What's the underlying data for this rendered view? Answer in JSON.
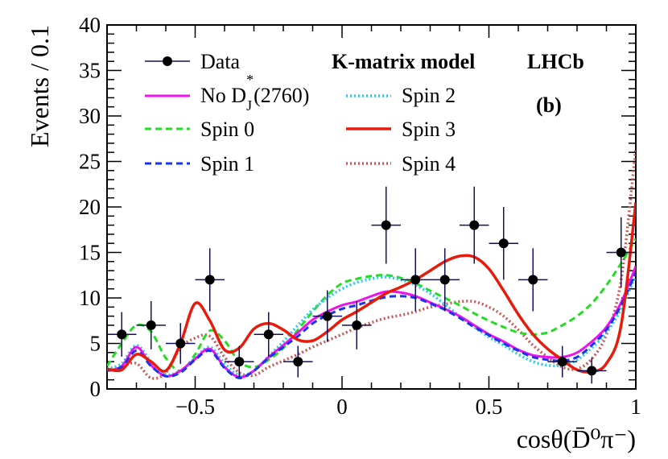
{
  "chart_data": {
    "type": "line",
    "title": "",
    "xlabel": "cosθ(D̄⁰π⁻)",
    "ylabel": "Events / 0.1",
    "xlim": [
      -0.8,
      1.0
    ],
    "ylim": [
      0,
      40
    ],
    "x_ticks": [
      -0.5,
      0,
      0.5,
      1
    ],
    "x_tick_labels": [
      "−0.5",
      "0",
      "0.5",
      "1"
    ],
    "y_ticks": [
      0,
      5,
      10,
      15,
      20,
      25,
      30,
      35,
      40
    ],
    "y_tick_labels": [
      "0",
      "5",
      "10",
      "15",
      "20",
      "25",
      "30",
      "35",
      "40"
    ],
    "grid": false,
    "legend_position": "top-left",
    "annotations": {
      "model": "K-matrix model",
      "experiment": "LHCb",
      "panel": "(b)"
    },
    "data_points": {
      "name": "Data",
      "color": "#101060",
      "x": [
        -0.75,
        -0.65,
        -0.55,
        -0.45,
        -0.35,
        -0.25,
        -0.15,
        -0.05,
        0.05,
        0.15,
        0.25,
        0.35,
        0.45,
        0.55,
        0.65,
        0.75,
        0.85,
        0.95
      ],
      "y": [
        6,
        7,
        5,
        12,
        3,
        6,
        3,
        8,
        7,
        18,
        12,
        12,
        18,
        16,
        12,
        3,
        2,
        15
      ],
      "yerr": [
        2.45,
        2.65,
        2.24,
        3.46,
        1.73,
        2.45,
        1.73,
        2.83,
        2.65,
        4.24,
        3.46,
        3.46,
        4.24,
        4.0,
        3.46,
        1.73,
        1.41,
        3.87
      ],
      "xerr": 0.05
    },
    "series": [
      {
        "name": "No D_J^*(2760)",
        "legend_main": "No D",
        "legend_sub": "J",
        "legend_sup": "*",
        "legend_tail": "(2760)",
        "color": "#ee11ee",
        "dash": "solid",
        "width": 3,
        "x": [
          -0.8,
          -0.75,
          -0.7,
          -0.65,
          -0.6,
          -0.55,
          -0.5,
          -0.45,
          -0.4,
          -0.35,
          -0.3,
          -0.25,
          -0.2,
          -0.15,
          -0.1,
          -0.05,
          0,
          0.05,
          0.1,
          0.15,
          0.2,
          0.25,
          0.3,
          0.35,
          0.4,
          0.45,
          0.5,
          0.55,
          0.6,
          0.65,
          0.7,
          0.75,
          0.8,
          0.85,
          0.9,
          0.95,
          1.0
        ],
        "y": [
          2.0,
          2.5,
          4.6,
          2.6,
          1.4,
          2.0,
          3.3,
          4.4,
          2.4,
          1.3,
          2.0,
          3.5,
          4.8,
          6.2,
          7.6,
          8.5,
          9.2,
          9.6,
          10.2,
          10.7,
          10.6,
          10.2,
          9.5,
          8.8,
          8.0,
          7.0,
          6.0,
          5.2,
          4.3,
          3.7,
          3.5,
          3.5,
          4.0,
          5.2,
          6.8,
          9.5,
          13.5
        ]
      },
      {
        "name": "Spin 0",
        "legend_main": "Spin 0",
        "color": "#22dd22",
        "dash": "8,5",
        "width": 3,
        "x": [
          -0.8,
          -0.75,
          -0.7,
          -0.65,
          -0.6,
          -0.55,
          -0.5,
          -0.45,
          -0.4,
          -0.35,
          -0.3,
          -0.25,
          -0.2,
          -0.15,
          -0.1,
          -0.05,
          0,
          0.05,
          0.1,
          0.15,
          0.2,
          0.25,
          0.3,
          0.35,
          0.4,
          0.45,
          0.5,
          0.55,
          0.6,
          0.65,
          0.7,
          0.75,
          0.8,
          0.85,
          0.9,
          0.95,
          1.0
        ],
        "y": [
          2.5,
          5.0,
          7.0,
          6.3,
          3.4,
          2.0,
          3.8,
          6.4,
          5.3,
          3.0,
          2.4,
          3.2,
          4.5,
          6.5,
          8.5,
          10.3,
          11.6,
          12.1,
          12.4,
          12.5,
          12.2,
          11.6,
          10.8,
          10.0,
          9.2,
          8.3,
          7.5,
          6.8,
          6.2,
          6.0,
          6.2,
          7.0,
          8.0,
          9.4,
          11.4,
          13.8,
          16.5
        ]
      },
      {
        "name": "Spin 1",
        "legend_main": "Spin 1",
        "color": "#1a33ee",
        "dash": "8,5",
        "width": 3,
        "x": [
          -0.8,
          -0.75,
          -0.7,
          -0.65,
          -0.6,
          -0.55,
          -0.5,
          -0.45,
          -0.4,
          -0.35,
          -0.3,
          -0.25,
          -0.2,
          -0.15,
          -0.1,
          -0.05,
          0,
          0.05,
          0.1,
          0.15,
          0.2,
          0.25,
          0.3,
          0.35,
          0.4,
          0.45,
          0.5,
          0.55,
          0.6,
          0.65,
          0.7,
          0.75,
          0.8,
          0.85,
          0.9,
          0.95,
          1.0
        ],
        "y": [
          2.0,
          2.4,
          4.2,
          2.5,
          1.4,
          1.8,
          3.2,
          4.2,
          2.3,
          1.2,
          2.0,
          3.4,
          4.6,
          5.8,
          7.2,
          8.1,
          8.8,
          9.2,
          9.7,
          10.1,
          10.2,
          10.0,
          9.4,
          8.7,
          7.8,
          6.8,
          5.9,
          5.0,
          4.2,
          3.5,
          3.2,
          3.1,
          3.5,
          4.8,
          6.5,
          9.2,
          12.8
        ]
      },
      {
        "name": "Spin 2",
        "legend_main": "Spin 2",
        "color": "#22ccee",
        "dash": "2,3",
        "width": 3.5,
        "x": [
          -0.8,
          -0.75,
          -0.7,
          -0.65,
          -0.6,
          -0.55,
          -0.5,
          -0.45,
          -0.4,
          -0.35,
          -0.3,
          -0.25,
          -0.2,
          -0.15,
          -0.1,
          -0.05,
          0,
          0.05,
          0.1,
          0.15,
          0.2,
          0.25,
          0.3,
          0.35,
          0.4,
          0.45,
          0.5,
          0.55,
          0.6,
          0.65,
          0.7,
          0.75,
          0.8,
          0.85,
          0.9,
          0.95,
          1.0
        ],
        "y": [
          2.2,
          2.8,
          4.8,
          3.0,
          1.6,
          2.0,
          3.4,
          4.6,
          2.8,
          1.5,
          2.0,
          3.6,
          5.2,
          7.0,
          8.7,
          10.0,
          11.0,
          11.7,
          12.1,
          12.3,
          12.0,
          11.4,
          10.5,
          9.3,
          8.0,
          6.8,
          5.7,
          4.8,
          3.8,
          3.0,
          2.6,
          2.6,
          3.2,
          4.5,
          6.2,
          8.8,
          12.5
        ]
      },
      {
        "name": "Spin 3",
        "legend_main": "Spin 3",
        "color": "#e81a0a",
        "dash": "solid",
        "width": 3.5,
        "x": [
          -0.8,
          -0.75,
          -0.7,
          -0.65,
          -0.6,
          -0.55,
          -0.5,
          -0.45,
          -0.4,
          -0.35,
          -0.3,
          -0.25,
          -0.2,
          -0.15,
          -0.1,
          -0.05,
          0,
          0.05,
          0.1,
          0.15,
          0.2,
          0.25,
          0.3,
          0.35,
          0.4,
          0.45,
          0.5,
          0.55,
          0.6,
          0.65,
          0.7,
          0.75,
          0.8,
          0.85,
          0.9,
          0.95,
          1.0
        ],
        "y": [
          2.2,
          2.1,
          3.8,
          3.0,
          2.0,
          5.0,
          9.4,
          7.5,
          4.3,
          4.5,
          6.6,
          7.2,
          6.5,
          5.4,
          5.3,
          6.3,
          7.6,
          8.5,
          9.5,
          10.5,
          11.2,
          12.0,
          13.0,
          14.0,
          14.6,
          14.5,
          13.2,
          10.8,
          8.2,
          6.0,
          4.4,
          3.2,
          2.1,
          1.9,
          2.8,
          7.0,
          20.5
        ]
      },
      {
        "name": "Spin 4",
        "legend_main": "Spin 4",
        "color": "#cc5555",
        "dash": "2,3",
        "width": 3.5,
        "x": [
          -0.8,
          -0.75,
          -0.7,
          -0.65,
          -0.6,
          -0.55,
          -0.5,
          -0.45,
          -0.4,
          -0.35,
          -0.3,
          -0.25,
          -0.2,
          -0.15,
          -0.1,
          -0.05,
          0,
          0.05,
          0.1,
          0.15,
          0.2,
          0.25,
          0.3,
          0.35,
          0.4,
          0.45,
          0.5,
          0.55,
          0.6,
          0.65,
          0.7,
          0.75,
          0.8,
          0.85,
          0.9,
          0.95,
          1.0
        ],
        "y": [
          2.2,
          2.5,
          2.8,
          1.2,
          1.8,
          4.5,
          5.6,
          5.8,
          3.5,
          1.8,
          1.5,
          2.4,
          3.1,
          3.8,
          4.6,
          5.3,
          6.0,
          6.7,
          7.3,
          7.8,
          8.1,
          8.5,
          9.0,
          9.3,
          9.6,
          9.6,
          9.0,
          8.0,
          6.5,
          4.8,
          3.5,
          2.4,
          2.2,
          3.3,
          6.0,
          12.0,
          26.5
        ]
      }
    ]
  }
}
